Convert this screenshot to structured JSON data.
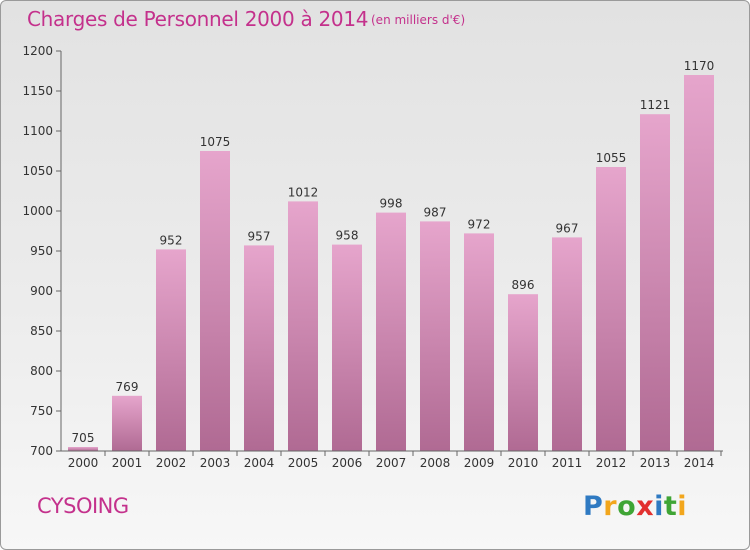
{
  "header": {
    "title": "Charges de Personnel 2000 à 2014",
    "subtitle": "(en milliers d'€)"
  },
  "footer": {
    "town": "CYSOING",
    "logo_letters": [
      "P",
      "r",
      "o",
      "x",
      "i",
      "t",
      "i"
    ],
    "logo_text": "Proxiti"
  },
  "colors": {
    "title": "#c4318c",
    "bar_top": "#e6a5cc",
    "bar_bottom": "#b06a93"
  },
  "chart_data": {
    "type": "bar",
    "title": "Charges de Personnel 2000 à 2014",
    "subtitle": "(en milliers d'€)",
    "xlabel": "",
    "ylabel": "",
    "categories": [
      "2000",
      "2001",
      "2002",
      "2003",
      "2004",
      "2005",
      "2006",
      "2007",
      "2008",
      "2009",
      "2010",
      "2011",
      "2012",
      "2013",
      "2014"
    ],
    "values": [
      705,
      769,
      952,
      1075,
      957,
      1012,
      958,
      998,
      987,
      972,
      896,
      967,
      1055,
      1121,
      1170
    ],
    "ylim": [
      700,
      1200
    ],
    "yticks": [
      700,
      750,
      800,
      850,
      900,
      950,
      1000,
      1050,
      1100,
      1150,
      1200
    ],
    "grid": false,
    "legend": "none"
  }
}
